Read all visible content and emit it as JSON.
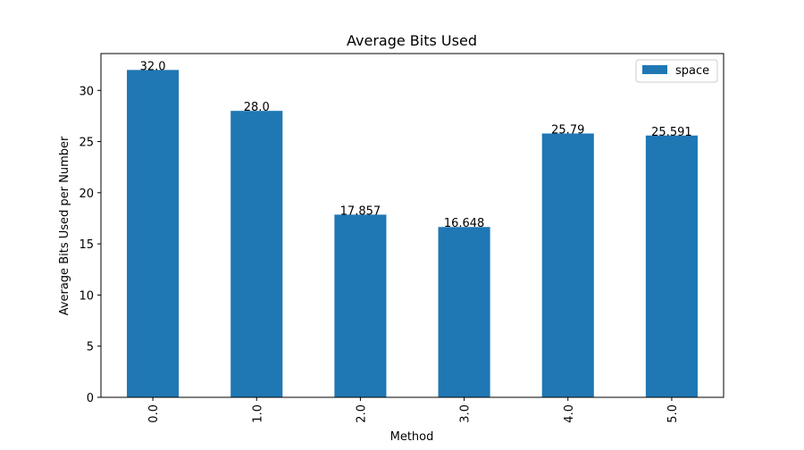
{
  "chart_data": {
    "type": "bar",
    "title": "Average Bits Used",
    "xlabel": "Method",
    "ylabel": "Average Bits Used per Number",
    "categories": [
      "0.0",
      "1.0",
      "2.0",
      "3.0",
      "4.0",
      "5.0"
    ],
    "series": [
      {
        "name": "space",
        "values": [
          32.0,
          28.0,
          17.857,
          16.648,
          25.79,
          25.591
        ],
        "color": "#1f77b4"
      }
    ],
    "data_labels": [
      "32.0",
      "28.0",
      "17.857",
      "16.648",
      "25.79",
      "25.591"
    ],
    "yticks": [
      "0",
      "5",
      "10",
      "15",
      "20",
      "25",
      "30"
    ],
    "ylim": [
      0,
      33.6
    ],
    "grid": false,
    "legend_position": "top-right",
    "x_tick_rotation": "vertical"
  }
}
